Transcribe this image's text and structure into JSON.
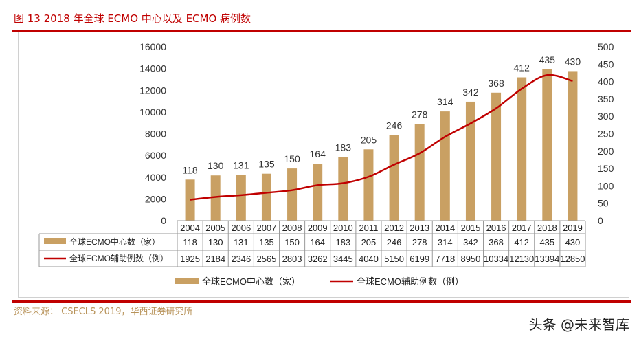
{
  "title": "图 13   2018 年全球 ECMO 中心以及 ECMO 病例数",
  "source": "资料来源： CSECLS 2019，华西证券研究所",
  "watermark": "头条 @未来智库",
  "chart_data": {
    "type": "bar+line",
    "categories": [
      "2004",
      "2005",
      "2006",
      "2007",
      "2008",
      "2009",
      "2010",
      "2011",
      "2012",
      "2013",
      "2014",
      "2015",
      "2016",
      "2017",
      "2018",
      "2019"
    ],
    "series": [
      {
        "name": "全球ECMO中心数（家）",
        "type": "bar",
        "axis": "right",
        "color": "#c9a063",
        "values": [
          118,
          130,
          131,
          135,
          150,
          164,
          183,
          205,
          246,
          278,
          314,
          342,
          368,
          412,
          435,
          430
        ]
      },
      {
        "name": "全球ECMO辅助例数（例）",
        "type": "line",
        "axis": "left",
        "color": "#c00000",
        "values": [
          1925,
          2184,
          2346,
          2565,
          2803,
          3262,
          3445,
          4040,
          5150,
          6199,
          7718,
          8950,
          10334,
          12130,
          13394,
          12850
        ]
      }
    ],
    "left_axis": {
      "ylim": [
        0,
        16000
      ],
      "ticks": [
        0,
        2000,
        4000,
        6000,
        8000,
        10000,
        12000,
        14000,
        16000
      ]
    },
    "right_axis": {
      "ylim": [
        0,
        500
      ],
      "ticks": [
        0,
        50,
        100,
        150,
        200,
        250,
        300,
        350,
        400,
        450,
        500
      ]
    },
    "data_table": true,
    "legend": "bottom",
    "grid": false
  }
}
